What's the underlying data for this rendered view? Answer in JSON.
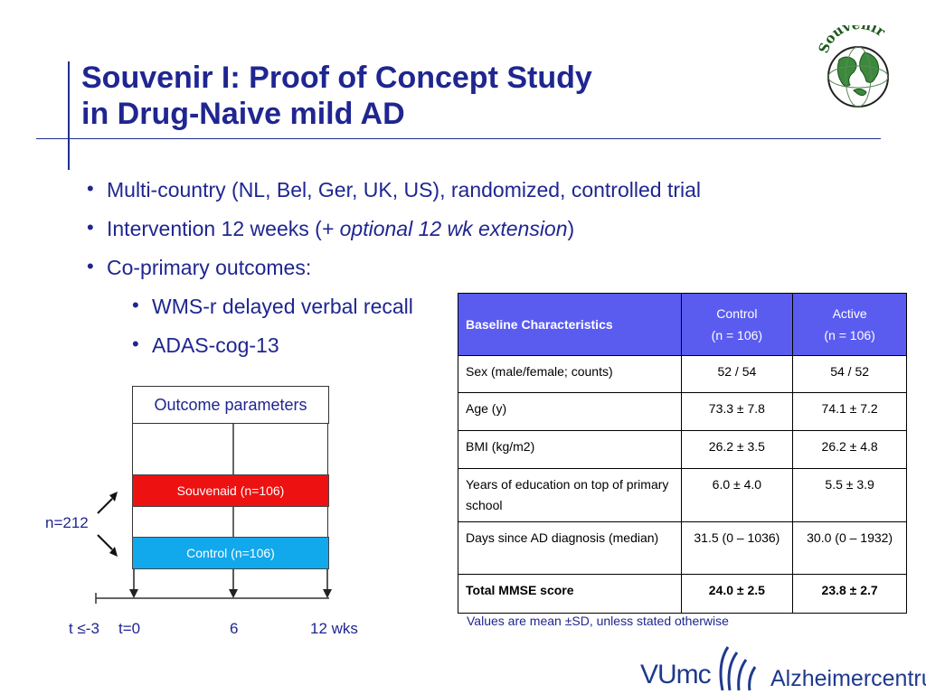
{
  "title": {
    "line1": "Souvenir I: Proof of Concept Study",
    "line2": "in Drug-Naive mild AD"
  },
  "logo": {
    "text": "Souvenir",
    "icon": "globe-icon"
  },
  "bullets": {
    "b1": "Multi-country (NL, Bel, Ger, UK, US), randomized, controlled trial",
    "b2_prefix": "Intervention 12 weeks (",
    "b2_italic": "+ optional 12 wk extension",
    "b2_suffix": ")",
    "b3": "Co-primary outcomes:",
    "sub1": "WMS-r delayed verbal recall",
    "sub2": "ADAS-cog-13"
  },
  "diagram": {
    "outcome_label": "Outcome parameters",
    "arm_active": "Souvenaid (n=106)",
    "arm_control": "Control (n=106)",
    "total_n": "n=212",
    "timeline": [
      "t ≤-3",
      "t=0",
      "6",
      "12 wks"
    ],
    "colors": {
      "active": "#ee1111",
      "control": "#12a8ec"
    }
  },
  "table": {
    "headers": {
      "characteristic": "Baseline Characteristics",
      "control_line1": "Control",
      "control_line2": "(n = 106)",
      "active_line1": "Active",
      "active_line2": "(n = 106)"
    },
    "header_color": "#5a5cf0",
    "rows": [
      {
        "label": "Sex (male/female; counts)",
        "control": "52 / 54",
        "active": "54 / 52"
      },
      {
        "label": "Age (y)",
        "control": "73.3 ± 7.8",
        "active": "74.1 ± 7.2"
      },
      {
        "label": "BMI (kg/m2)",
        "control": "26.2 ± 3.5",
        "active": "26.2 ± 4.8"
      },
      {
        "label": "Years of education on top of primary school",
        "control": "6.0 ± 4.0",
        "active": "5.5 ± 3.9"
      },
      {
        "label": "Days since AD diagnosis (median)",
        "control": "31.5 (0 – 1036)",
        "active": "30.0 (0 – 1932)"
      },
      {
        "label": "Total MMSE score",
        "control": "24.0 ± 2.5",
        "active": "23.8 ± 2.7"
      }
    ]
  },
  "footnote": "Values are mean ±SD, unless stated otherwise",
  "footer_logo": {
    "vumc": "VUmc",
    "center": "Alzheimercentrum"
  }
}
